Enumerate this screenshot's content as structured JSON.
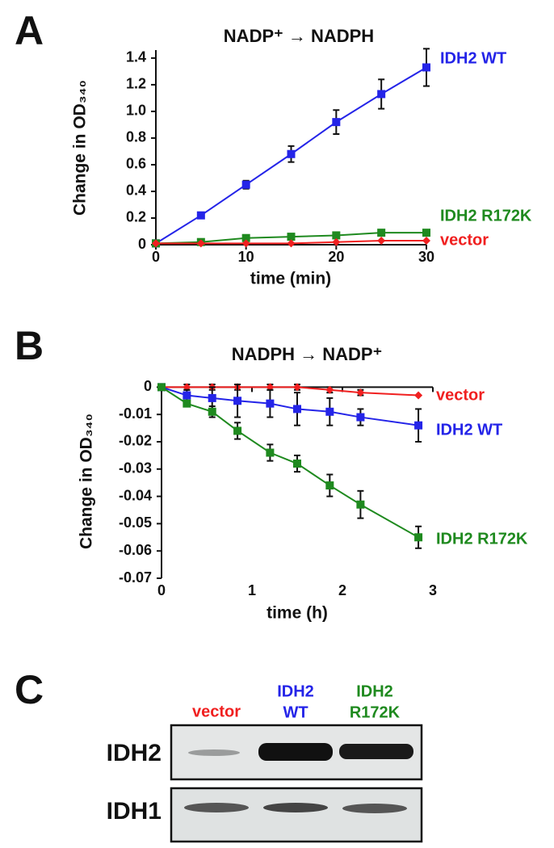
{
  "panels": [
    "A",
    "B",
    "C"
  ],
  "chart_data": [
    {
      "type": "line",
      "title": "NADP⁺ → NADPH",
      "x_label": "time (min)",
      "y_label": "Change in OD₃₄₀",
      "xlim": [
        0,
        30
      ],
      "xticks": [
        0,
        10,
        20,
        30
      ],
      "ylim": [
        0,
        1.46
      ],
      "yticks": [
        0,
        0.2,
        0.4,
        0.6,
        0.8,
        {
          "value": 1,
          "label": "1.0"
        },
        1.2,
        1.4
      ],
      "x": [
        0,
        5,
        10,
        15,
        20,
        25,
        30
      ],
      "series": [
        {
          "name": "IDH2 WT",
          "color": "#2424e8",
          "marker": "square",
          "values": [
            0.01,
            0.22,
            0.45,
            0.68,
            0.92,
            1.13,
            1.33
          ],
          "errors": [
            0,
            0.02,
            0.03,
            0.06,
            0.09,
            0.11,
            0.14
          ]
        },
        {
          "name": "IDH2 R172K",
          "color": "#1f8a1f",
          "marker": "square",
          "values": [
            0.01,
            0.02,
            0.05,
            0.06,
            0.07,
            0.09,
            0.09
          ],
          "errors": [
            0,
            0.01,
            0.01,
            0.01,
            0.01,
            0.01,
            0.01
          ]
        },
        {
          "name": "vector",
          "color": "#f02020",
          "marker": "diamond",
          "values": [
            0.01,
            0.01,
            0.01,
            0.01,
            0.02,
            0.03,
            0.03
          ],
          "errors": [
            0,
            0,
            0,
            0,
            0,
            0,
            0
          ]
        }
      ]
    },
    {
      "type": "line",
      "title": "NADPH → NADP⁺",
      "x_label": "time (h)",
      "y_label": "Change in OD₃₄₀",
      "xlim": [
        0,
        3
      ],
      "xticks": [
        0,
        1,
        2,
        3
      ],
      "ylim": [
        -0.07,
        0.001
      ],
      "yticks": [
        0,
        -0.01,
        -0.02,
        -0.03,
        -0.04,
        -0.05,
        -0.06,
        -0.07
      ],
      "x": [
        0,
        0.28,
        0.56,
        0.84,
        1.2,
        1.5,
        1.86,
        2.2,
        2.84
      ],
      "series": [
        {
          "name": "vector",
          "color": "#f02020",
          "marker": "diamond",
          "values": [
            0,
            0,
            0,
            0,
            0,
            0,
            -0.001,
            -0.002,
            -0.003
          ],
          "errors": [
            0,
            0.001,
            0.001,
            0.001,
            0.001,
            0.001,
            0.001,
            0.001,
            0
          ]
        },
        {
          "name": "IDH2 WT",
          "color": "#2424e8",
          "marker": "square",
          "values": [
            0,
            -0.003,
            -0.004,
            -0.005,
            -0.006,
            -0.008,
            -0.009,
            -0.011,
            -0.014
          ],
          "errors": [
            0,
            0.002,
            0.004,
            0.006,
            0.005,
            0.006,
            0.005,
            0.003,
            0.006
          ]
        },
        {
          "name": "IDH2 R172K",
          "color": "#1f8a1f",
          "marker": "square",
          "values": [
            0,
            -0.006,
            -0.009,
            -0.016,
            -0.024,
            -0.028,
            -0.036,
            -0.043,
            -0.055
          ],
          "errors": [
            0,
            0.001,
            0.002,
            0.003,
            0.003,
            0.003,
            0.004,
            0.005,
            0.004
          ]
        }
      ]
    }
  ],
  "blot": {
    "lanes": [
      {
        "lines": [
          "vector"
        ],
        "color": "#f02020"
      },
      {
        "lines": [
          "IDH2",
          "WT"
        ],
        "color": "#2424e8"
      },
      {
        "lines": [
          "IDH2",
          "R172K"
        ],
        "color": "#1f8a1f"
      }
    ],
    "rows": [
      "IDH2",
      "IDH1"
    ]
  }
}
